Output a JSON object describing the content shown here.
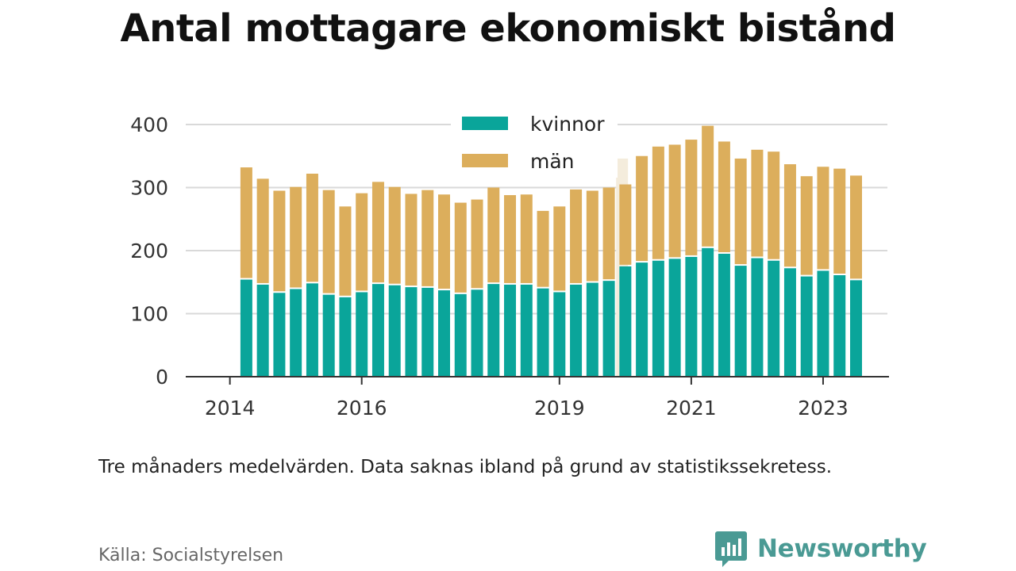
{
  "title": "Antal mottagare ekonomiskt bistånd",
  "note": "Tre månaders medelvärden. Data saknas ibland på grund av statistikssekretess.",
  "source": "Källa: Socialstyrelsen",
  "brand": {
    "name": "Newsworthy",
    "logo_icon": "newsworthy-logo-icon",
    "color": "#4a9a94"
  },
  "colors": {
    "kvinnor": "#0aa59a",
    "man": "#dcae5c",
    "missing": "#f4ecdc",
    "grid": "#d9d9d9",
    "axis": "#333333"
  },
  "chart_data": {
    "type": "bar",
    "stacked": true,
    "legend_position": "top-center",
    "grid": true,
    "ylim": [
      0,
      400
    ],
    "yticks": [
      "0",
      "100",
      "200",
      "300",
      "400"
    ],
    "xticks": [
      {
        "label": "2014",
        "x": 2014.0
      },
      {
        "label": "2016",
        "x": 2016.0
      },
      {
        "label": "2019",
        "x": 2019.0
      },
      {
        "label": "2021",
        "x": 2021.0
      },
      {
        "label": "2023",
        "x": 2023.0
      }
    ],
    "xlim": [
      2013.33,
      2024.0
    ],
    "x": [
      2014.25,
      2014.5,
      2014.75,
      2015.0,
      2015.25,
      2015.5,
      2015.75,
      2016.0,
      2016.25,
      2016.5,
      2016.75,
      2017.0,
      2017.25,
      2017.5,
      2017.75,
      2018.0,
      2018.25,
      2018.5,
      2018.75,
      2019.0,
      2019.25,
      2019.5,
      2019.75,
      2020.0,
      2020.25,
      2020.5,
      2020.75,
      2021.0,
      2021.25,
      2021.5,
      2021.75,
      2022.0,
      2022.25,
      2022.5,
      2022.75,
      2023.0,
      2023.25,
      2023.5
    ],
    "series": [
      {
        "name": "kvinnor",
        "values": [
          154,
          146,
          133,
          139,
          148,
          130,
          126,
          134,
          147,
          145,
          142,
          141,
          137,
          131,
          138,
          147,
          146,
          146,
          140,
          134,
          146,
          149,
          152,
          175,
          181,
          184,
          187,
          190,
          204,
          195,
          176,
          188,
          184,
          172,
          159,
          168,
          161,
          153
        ]
      },
      {
        "name": "män",
        "values": [
          178,
          168,
          162,
          162,
          174,
          166,
          144,
          157,
          162,
          156,
          148,
          155,
          152,
          145,
          143,
          153,
          142,
          143,
          123,
          136,
          151,
          146,
          148,
          130,
          169,
          181,
          181,
          186,
          194,
          178,
          170,
          172,
          173,
          165,
          159,
          165,
          169,
          166
        ]
      }
    ],
    "missing_bars": [
      {
        "x": 2019.95,
        "value": 346
      }
    ]
  }
}
